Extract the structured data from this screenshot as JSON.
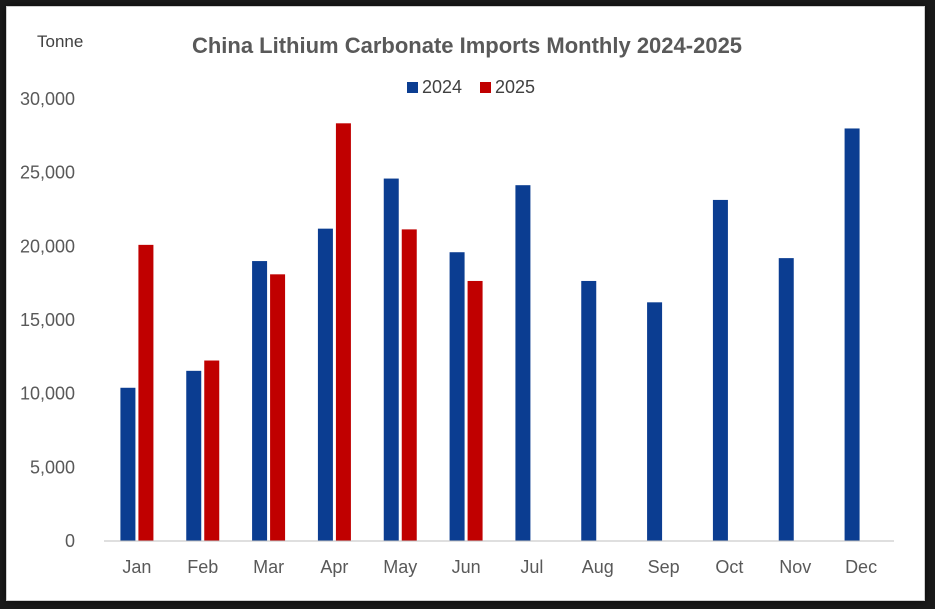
{
  "chart_data": {
    "type": "bar",
    "title": "China Lithium Carbonate Imports Monthly 2024-2025",
    "unit_label": "Tonne",
    "xlabel": "",
    "ylabel": "",
    "ylim": [
      0,
      30000
    ],
    "yticks": [
      0,
      5000,
      10000,
      15000,
      20000,
      25000,
      30000
    ],
    "ytick_labels": [
      "0",
      "5,000",
      "10,000",
      "15,000",
      "20,000",
      "25,000",
      "30,000"
    ],
    "grid": false,
    "legend_position": "top-center",
    "categories": [
      "Jan",
      "Feb",
      "Mar",
      "Apr",
      "May",
      "Jun",
      "Jul",
      "Aug",
      "Sep",
      "Oct",
      "Nov",
      "Dec"
    ],
    "series": [
      {
        "name": "2024",
        "color": "#0b3d91",
        "values": [
          10400,
          11550,
          19000,
          21200,
          24600,
          19600,
          24150,
          17650,
          16200,
          23150,
          19200,
          28000
        ]
      },
      {
        "name": "2025",
        "color": "#c00000",
        "values": [
          20100,
          12250,
          18100,
          28350,
          21150,
          17650,
          null,
          null,
          null,
          null,
          null,
          null
        ]
      }
    ]
  }
}
